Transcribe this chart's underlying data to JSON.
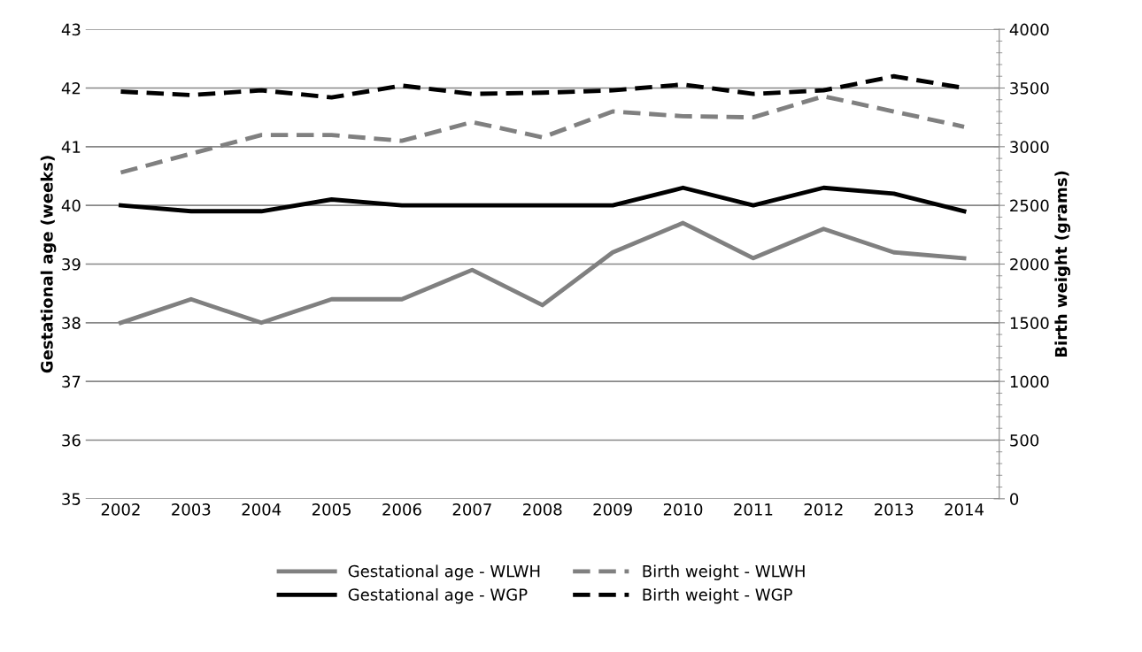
{
  "chart_data": {
    "type": "line",
    "categories": [
      "2002",
      "2003",
      "2004",
      "2005",
      "2006",
      "2007",
      "2008",
      "2009",
      "2010",
      "2011",
      "2012",
      "2013",
      "2014"
    ],
    "ylabel": "Gestational age (weeks)",
    "y2label": "Birth weight (grams)",
    "ylim": [
      35,
      43
    ],
    "yticks": [
      35,
      36,
      37,
      38,
      39,
      40,
      41,
      42,
      43
    ],
    "y2lim": [
      0,
      4000
    ],
    "y2ticks": [
      0,
      500,
      1000,
      1500,
      2000,
      2500,
      3000,
      3500,
      4000
    ],
    "grid": "y",
    "legend": "bottom",
    "marker": "none",
    "series": [
      {
        "name": "Gestational age - WLWH",
        "color": "#808080",
        "line_style": "solid",
        "values": [
          38.0,
          38.4,
          38.0,
          38.4,
          38.4,
          38.9,
          38.3,
          39.2,
          39.7,
          39.1,
          39.6,
          39.2,
          39.1
        ]
      },
      {
        "name": "Gestational age - WGP",
        "color": "#000000",
        "line_style": "solid",
        "values": [
          40.0,
          39.9,
          39.9,
          40.1,
          40.0,
          40.0,
          40.0,
          40.0,
          40.3,
          40.0,
          40.3,
          40.2,
          39.9
        ]
      },
      {
        "name": "Birth weight - WLWH",
        "color": "#808080",
        "line_style": "dashed",
        "axis": "y2",
        "values": [
          2780,
          2940,
          3100,
          3100,
          3050,
          3210,
          3080,
          3300,
          3260,
          3250,
          3430,
          3300,
          3170
        ]
      },
      {
        "name": "Birth weight - WGP",
        "color": "#000000",
        "line_style": "dashed",
        "axis": "y2",
        "values": [
          3470,
          3440,
          3480,
          3420,
          3520,
          3450,
          3460,
          3480,
          3530,
          3450,
          3480,
          3600,
          3500
        ]
      }
    ]
  }
}
